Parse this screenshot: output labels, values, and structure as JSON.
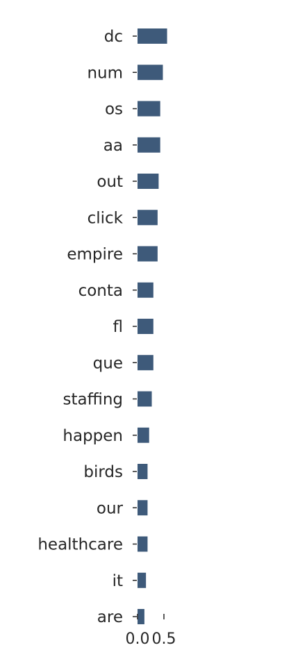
{
  "chart_data": {
    "type": "bar",
    "orientation": "horizontal",
    "categories": [
      "dc",
      "num",
      "os",
      "aa",
      "out",
      "click",
      "empire",
      "conta",
      "fl",
      "que",
      "staffing",
      "happen",
      "birds",
      "our",
      "healthcare",
      "it",
      "are"
    ],
    "values": [
      0.56,
      0.48,
      0.43,
      0.43,
      0.4,
      0.38,
      0.38,
      0.3,
      0.3,
      0.3,
      0.27,
      0.22,
      0.19,
      0.19,
      0.19,
      0.16,
      0.13
    ],
    "x_ticks": [
      "0.0",
      "0.5"
    ],
    "xlim": [
      0,
      0.6
    ],
    "title": "",
    "xlabel": "",
    "ylabel": "",
    "grid": false,
    "bar_color": "#3e5a7a"
  }
}
